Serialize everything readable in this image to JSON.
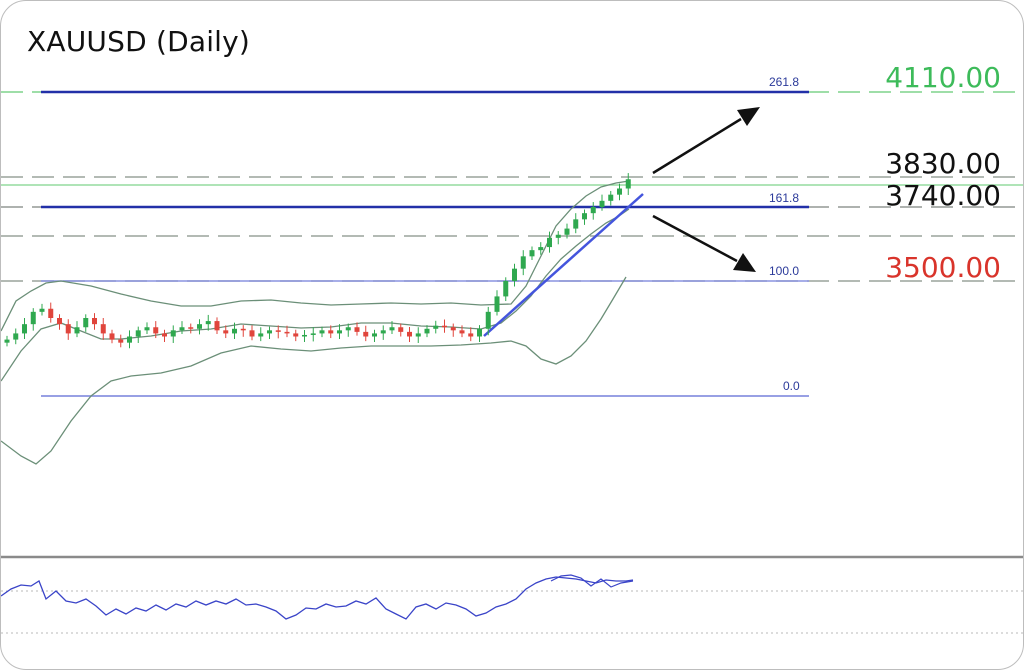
{
  "title": "XAUUSD (Daily)",
  "levels": [
    {
      "label": "4110.00",
      "color": "#3dbb5a"
    },
    {
      "label": "3830.00",
      "color": "#111111"
    },
    {
      "label": "3740.00",
      "color": "#111111"
    },
    {
      "label": "3500.00",
      "color": "#d9342b"
    }
  ],
  "fib_labels": [
    "261.8",
    "161.8",
    "100.0",
    "0.0"
  ],
  "colors": {
    "bull": "#2fa84f",
    "bear": "#e0453c",
    "band": "#6b8f78",
    "fib": "#2230a8",
    "fib_light": "#8a93e0",
    "level_dash": "#9aa49c",
    "level_green": "#7fd48c",
    "rsi": "#3a44c8"
  },
  "chart_data": {
    "type": "candlestick",
    "instrument": "XAUUSD",
    "timeframe": "Daily",
    "price_levels": [
      4110.0,
      3830.0,
      3740.0,
      3500.0
    ],
    "fibonacci_levels": [
      261.8,
      161.8,
      100.0,
      0.0
    ],
    "close_series_approx": [
      3310,
      3330,
      3360,
      3400,
      3410,
      3380,
      3360,
      3330,
      3350,
      3380,
      3360,
      3330,
      3310,
      3300,
      3320,
      3340,
      3350,
      3330,
      3320,
      3340,
      3350,
      3345,
      3360,
      3370,
      3340,
      3330,
      3345,
      3340,
      3320,
      3330,
      3340,
      3335,
      3330,
      3320,
      3325,
      3330,
      3340,
      3330,
      3340,
      3350,
      3335,
      3320,
      3330,
      3340,
      3350,
      3335,
      3320,
      3330,
      3345,
      3355,
      3350,
      3340,
      3330,
      3320,
      3345,
      3400,
      3450,
      3500,
      3540,
      3580,
      3600,
      3610,
      3640,
      3650,
      3670,
      3700,
      3720,
      3740,
      3760,
      3780,
      3800,
      3830
    ]
  }
}
